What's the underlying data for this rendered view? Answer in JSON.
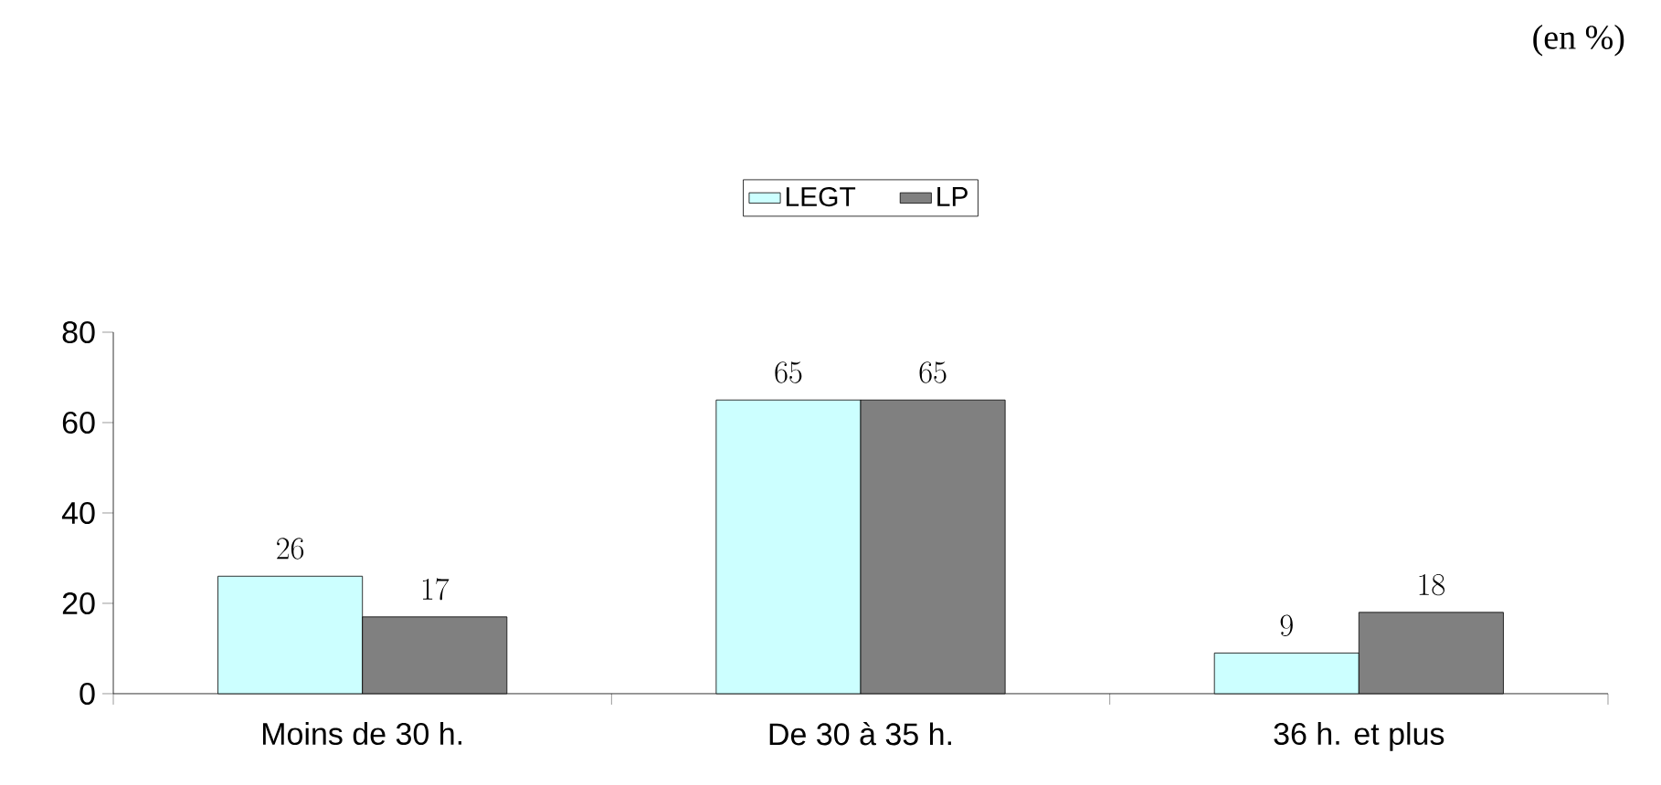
{
  "chart_data": {
    "type": "bar",
    "annotations": [
      "(en %)"
    ],
    "categories": [
      "Moins de 30 h.",
      "De 30 à 35 h.",
      "36 h. et plus"
    ],
    "series": [
      {
        "name": "LEGT",
        "color": "#ccffff",
        "values": [
          26,
          65,
          9
        ]
      },
      {
        "name": "LP",
        "color": "#808080",
        "values": [
          17,
          65,
          18
        ]
      }
    ],
    "ylim": [
      0,
      80
    ],
    "yticks": [
      0,
      20,
      40,
      60,
      80
    ],
    "data_labels": true,
    "legend": "top"
  }
}
